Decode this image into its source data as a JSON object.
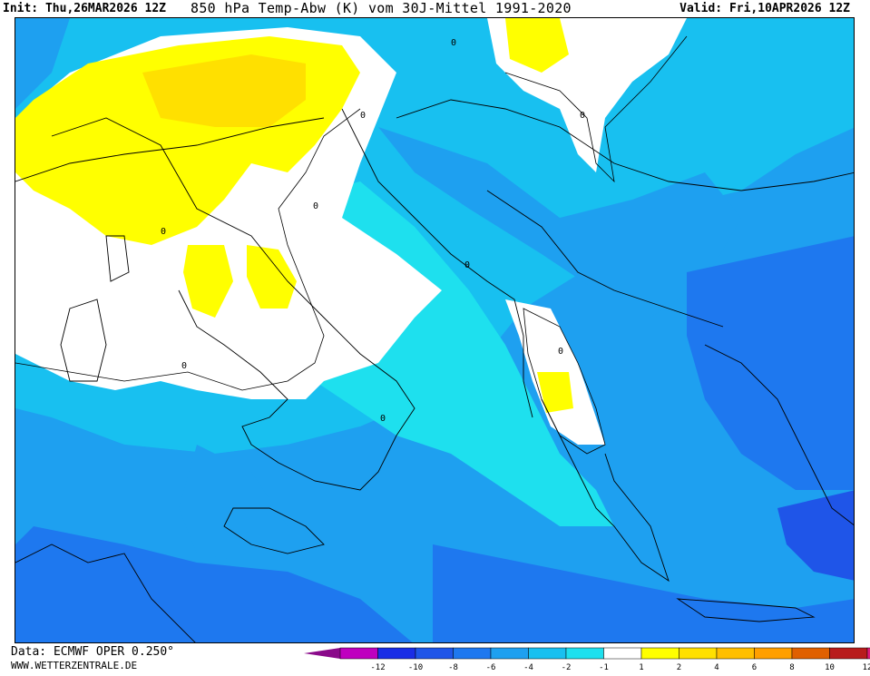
{
  "header": {
    "init": "Init: Thu,26MAR2026 12Z",
    "title": "850 hPa Temp-Abw (K) vom 30J-Mittel 1991-2020",
    "valid": "Valid: Fri,10APR2026 12Z"
  },
  "footer": {
    "source": "Data: ECMWF OPER 0.250°",
    "website": "WWW.WETTERZENTRALE.DE"
  },
  "legend": {
    "ticks": [
      "-12",
      "-10",
      "-8",
      "-6",
      "-4",
      "-2",
      "-1",
      "1",
      "2",
      "4",
      "6",
      "8",
      "10",
      "12"
    ],
    "colors": [
      "#bf00bf",
      "#1a2de6",
      "#1f55e8",
      "#1e78ef",
      "#1ea0f0",
      "#18c0f0",
      "#1ee0ee",
      "#ffffff",
      "#ffff00",
      "#ffe000",
      "#ffbf00",
      "#ff9f00",
      "#e06000",
      "#b81c1c",
      "#e01b7a"
    ],
    "low_cap_color": "#8a0a8a",
    "high_cap_color": "#e01b7a"
  },
  "map": {
    "contour_labels": [
      "0",
      "0",
      "0",
      "0",
      "0",
      "0",
      "0",
      "0",
      "0"
    ]
  }
}
